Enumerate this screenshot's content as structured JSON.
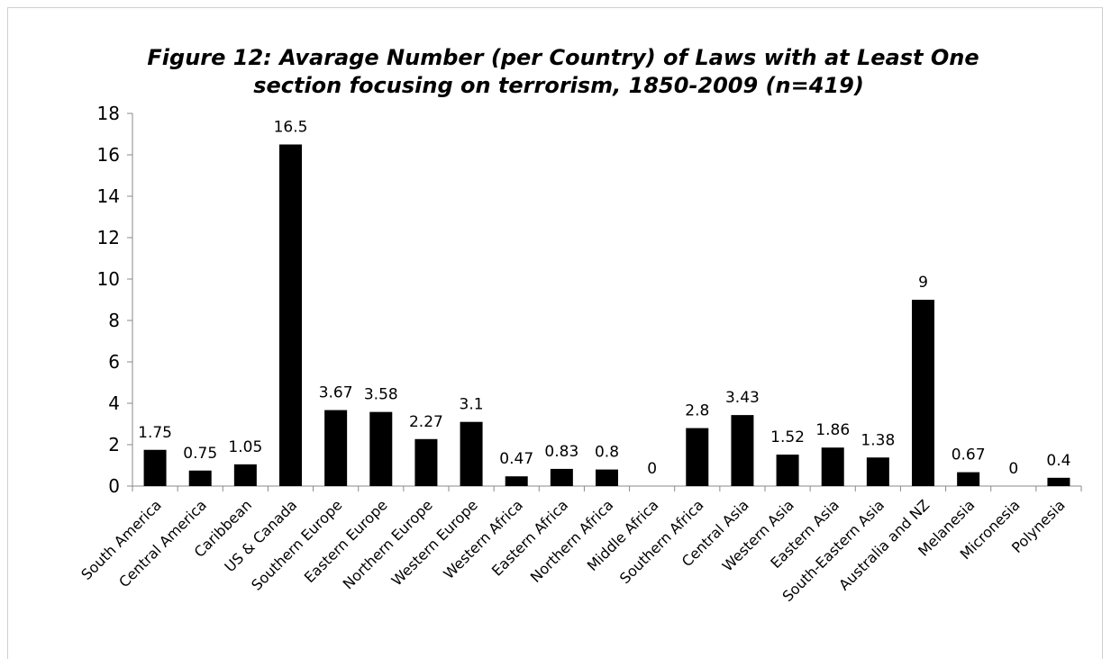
{
  "chart_data": {
    "type": "bar",
    "title": "Figure 12: Avarage Number (per Country) of Laws with at Least One",
    "subtitle": "section focusing on terrorism, 1850-2009 (n=419)",
    "xlabel": "",
    "ylabel": "",
    "ylim": [
      0,
      18
    ],
    "yticks": [
      0,
      2,
      4,
      6,
      8,
      10,
      12,
      14,
      16,
      18
    ],
    "grid": false,
    "legend": "none",
    "bar_color": "#000000",
    "categories": [
      "South America",
      "Central America",
      "Caribbean",
      "US & Canada",
      "Southern Europe",
      "Eastern Europe",
      "Northern Europe",
      "Western Europe",
      "Western Africa",
      "Eastern Africa",
      "Northern Africa",
      "Middle Africa",
      "Southern Africa",
      "Central Asia",
      "Western Asia",
      "Eastern Asia",
      "South-Eastern Asia",
      "Australia and NZ",
      "Melanesia",
      "Micronesia",
      "Polynesia"
    ],
    "values": [
      1.75,
      0.75,
      1.05,
      16.5,
      3.67,
      3.58,
      2.27,
      3.1,
      0.47,
      0.83,
      0.8,
      0,
      2.8,
      3.43,
      1.52,
      1.86,
      1.38,
      9,
      0.67,
      0,
      0.4
    ],
    "data_labels": [
      "1.75",
      "0.75",
      "1.05",
      "16.5",
      "3.67",
      "3.58",
      "2.27",
      "3.1",
      "0.47",
      "0.83",
      "0.8",
      "0",
      "2.8",
      "3.43",
      "1.52",
      "1.86",
      "1.38",
      "9",
      "0.67",
      "0",
      "0.4"
    ]
  }
}
